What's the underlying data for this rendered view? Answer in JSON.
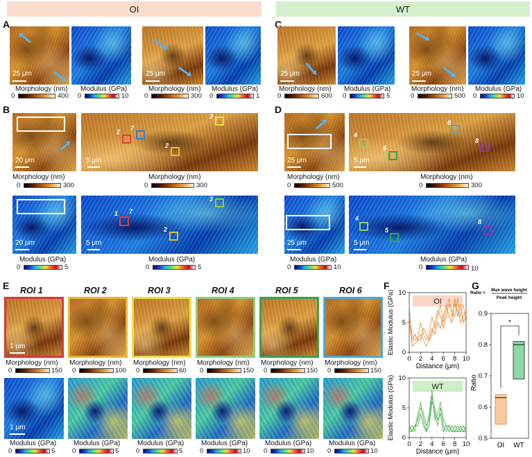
{
  "banners": {
    "left": "OI",
    "right": "WT"
  },
  "panels": {
    "A": "A",
    "B": "B",
    "C": "C",
    "D": "D",
    "E": "E",
    "F": "F",
    "G": "G"
  },
  "captions": {
    "morphology": "Morphology (nm)",
    "modulus": "Modulus (GPa)"
  },
  "scalebars": {
    "s25": "25 μm",
    "s20": "20 μm",
    "s5": "5 μm",
    "s1": "1 μm"
  },
  "colorbars": {
    "A1_morph": [
      "0",
      "400"
    ],
    "A1_mod": [
      "0",
      "10"
    ],
    "A2_morph": [
      "0",
      "300"
    ],
    "A2_mod": [
      "0",
      "1"
    ],
    "C1_morph": [
      "0",
      "600"
    ],
    "C1_mod": [
      "0",
      "5"
    ],
    "C2_morph": [
      "0",
      "500"
    ],
    "C2_mod": [
      "0",
      "10"
    ],
    "B_morph_small": [
      "0",
      "300"
    ],
    "B_morph_big": [
      "0",
      "300"
    ],
    "B_mod_small": [
      "0",
      "5"
    ],
    "B_mod_big": [
      "0",
      "5"
    ],
    "D_morph_small": [
      "0",
      "500"
    ],
    "D_morph_big": [
      "0",
      "300"
    ],
    "D_mod_small": [
      "0",
      "10"
    ],
    "D_mod_big": [
      "0",
      "10"
    ]
  },
  "roi_numbers": {
    "r1": "1",
    "r2": "2",
    "r3": "3",
    "r4": "4",
    "r5": "5",
    "r6": "6",
    "r7": "7",
    "r8": "8"
  },
  "roi_panels": [
    {
      "title": "ROI 1",
      "color": "#d8383a",
      "morph": [
        "0",
        "150"
      ],
      "mod": [
        "0",
        "5"
      ]
    },
    {
      "title": "ROI 2",
      "color": "#e8b830",
      "morph": [
        "0",
        "100"
      ],
      "mod": [
        "0",
        "5"
      ]
    },
    {
      "title": "ROI 3",
      "color": "#f0e040",
      "morph": [
        "0",
        "60"
      ],
      "mod": [
        "0",
        "5"
      ]
    },
    {
      "title": "ROI 4",
      "color": "#8ccf7a",
      "morph": [
        "0",
        "150"
      ],
      "mod": [
        "0",
        "10"
      ]
    },
    {
      "title": "ROI 5",
      "color": "#3aa050",
      "morph": [
        "0",
        "150"
      ],
      "mod": [
        "0",
        "10"
      ]
    },
    {
      "title": "ROI 6",
      "color": "#4aa8d8",
      "morph": [
        "0",
        "150"
      ],
      "mod": [
        "0",
        "10"
      ]
    }
  ],
  "chart_data": [
    {
      "type": "line",
      "panel": "F",
      "label": "OI",
      "ylabel": "Elastic Modulus (GPa)",
      "xlabel": "Distance (μm)",
      "xlim": [
        0,
        10
      ],
      "ylim": [
        0,
        10
      ],
      "xticks": [
        "0",
        "2",
        "4",
        "6",
        "8",
        "10"
      ],
      "yticks": [
        "0",
        "5",
        "10"
      ],
      "color": "#e8842a",
      "series": [
        {
          "x": [
            0,
            0.5,
            1,
            1.5,
            2,
            2.5,
            3,
            3.5,
            4,
            4.5,
            5,
            5.5,
            6,
            6.5,
            7,
            7.5,
            8,
            8.5,
            9,
            9.5,
            10
          ],
          "values": [
            6,
            3,
            2,
            2.5,
            5,
            3,
            2,
            3,
            6,
            4,
            6,
            8,
            5,
            7,
            9,
            6,
            8,
            7,
            6,
            8,
            5
          ]
        },
        {
          "x": [
            0,
            0.5,
            1,
            1.5,
            2,
            2.5,
            3,
            3.5,
            4,
            4.5,
            5,
            5.5,
            6,
            6.5,
            7,
            7.5,
            8,
            8.5,
            9,
            9.5,
            10
          ],
          "values": [
            8,
            1,
            1.5,
            2,
            3,
            2,
            1,
            2,
            3,
            5,
            7,
            6,
            4,
            6,
            8,
            7,
            6,
            9,
            5,
            6,
            7
          ]
        },
        {
          "x": [
            0,
            0.5,
            1,
            1.5,
            2,
            2.5,
            3,
            3.5,
            4,
            4.5,
            5,
            5.5,
            6,
            6.5,
            7,
            7.5,
            8,
            8.5,
            9,
            9.5,
            10
          ],
          "values": [
            5,
            2,
            3,
            2,
            2,
            4,
            3,
            2,
            4,
            3,
            5,
            4,
            6,
            8,
            6,
            5,
            9,
            6,
            8,
            5,
            6
          ]
        }
      ]
    },
    {
      "type": "line",
      "panel": "F",
      "label": "WT",
      "ylabel": "Elastic Modulus (GPa)",
      "xlabel": "Distance (μm)",
      "xlim": [
        0,
        10
      ],
      "ylim": [
        0,
        10
      ],
      "xticks": [
        "0",
        "2",
        "4",
        "6",
        "8",
        "10"
      ],
      "yticks": [
        "0",
        "5",
        "10"
      ],
      "color": "#3ea83e",
      "series": [
        {
          "x": [
            0,
            0.5,
            1,
            1.5,
            2,
            2.5,
            3,
            3.5,
            4,
            4.5,
            5,
            5.5,
            6,
            6.5,
            7,
            7.5,
            8,
            8.5,
            9,
            9.5,
            10
          ],
          "values": [
            1,
            2,
            1,
            4,
            6,
            3,
            1,
            4,
            8,
            3,
            4,
            6,
            2,
            1,
            2,
            1,
            2,
            1,
            1,
            1,
            2
          ]
        },
        {
          "x": [
            0,
            0.5,
            1,
            1.5,
            2,
            2.5,
            3,
            3.5,
            4,
            4.5,
            5,
            5.5,
            6,
            6.5,
            7,
            7.5,
            8,
            8.5,
            9,
            9.5,
            10
          ],
          "values": [
            2,
            1,
            2,
            3,
            5,
            4,
            2,
            3,
            7,
            4,
            2,
            5,
            3,
            2,
            1,
            2,
            1,
            2,
            1,
            2,
            1
          ]
        },
        {
          "x": [
            0,
            0.5,
            1,
            1.5,
            2,
            2.5,
            3,
            3.5,
            4,
            4.5,
            5,
            5.5,
            6,
            6.5,
            7,
            7.5,
            8,
            8.5,
            9,
            9.5,
            10
          ],
          "values": [
            1,
            1,
            2,
            2,
            4,
            2,
            1,
            2,
            6,
            5,
            3,
            4,
            1,
            2,
            2,
            1,
            1,
            1,
            2,
            1,
            1
          ]
        }
      ]
    },
    {
      "type": "box",
      "panel": "G",
      "ylabel": "Ratio",
      "ylim": [
        0.5,
        0.9
      ],
      "yticks": [
        "0.5",
        "0.6",
        "0.7",
        "0.8",
        "0.9"
      ],
      "categories": [
        "OI",
        "WT"
      ],
      "formula": {
        "lhs": "Ratio =",
        "numerator": "Max wave height",
        "denominator": "Peak height"
      },
      "significance": "*",
      "boxes": [
        {
          "name": "OI",
          "q1": 0.545,
          "median": 0.63,
          "q3": 0.64,
          "whisker_low": 0.545,
          "whisker_high": 0.64,
          "color": "#f8c8a0",
          "edge": "#e07a30"
        },
        {
          "name": "WT",
          "q1": 0.69,
          "median": 0.8,
          "q3": 0.81,
          "whisker_low": 0.69,
          "whisker_high": 0.81,
          "color": "#8ed8a8",
          "edge": "#222"
        }
      ]
    }
  ]
}
